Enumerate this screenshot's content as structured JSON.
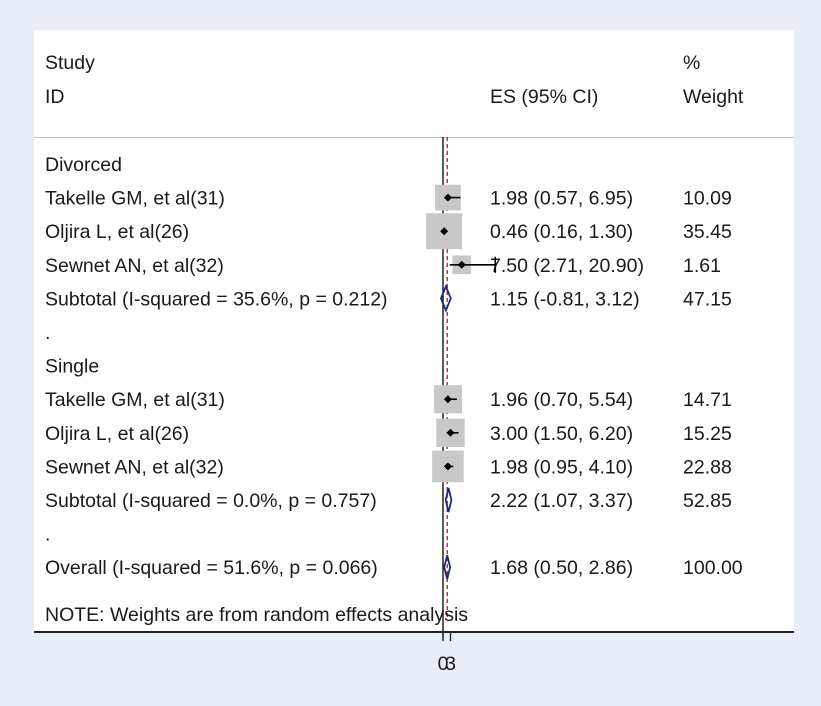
{
  "chart_data": {
    "type": "forest",
    "headers": {
      "study_line1": "Study",
      "study_line2": "ID",
      "es": "ES (95% CI)",
      "weight_line1": "%",
      "weight_line2": "Weight"
    },
    "rows": [
      {
        "kind": "group",
        "label": "Divorced"
      },
      {
        "kind": "study",
        "label": "Takelle GM, et al(31)",
        "es": 1.98,
        "lo": 0.57,
        "hi": 6.95,
        "ci_text": "1.98 (0.57, 6.95)",
        "weight": "10.09"
      },
      {
        "kind": "study",
        "label": "Oljira L, et al(26)",
        "es": 0.46,
        "lo": 0.16,
        "hi": 1.3,
        "ci_text": "0.46 (0.16, 1.30)",
        "weight": "35.45"
      },
      {
        "kind": "study",
        "label": "Sewnet AN, et al(32)",
        "es": 7.5,
        "lo": 2.71,
        "hi": 20.9,
        "ci_text": "7.50 (2.71, 20.90)",
        "weight": "1.61"
      },
      {
        "kind": "subtotal",
        "label": "Subtotal  (I-squared = 35.6%, p = 0.212)",
        "es": 1.15,
        "lo": -0.81,
        "hi": 3.12,
        "ci_text": "1.15 (-0.81, 3.12)",
        "weight": "47.15"
      },
      {
        "kind": "spacer",
        "label": "."
      },
      {
        "kind": "group",
        "label": "Single"
      },
      {
        "kind": "study",
        "label": "Takelle GM, et al(31)",
        "es": 1.96,
        "lo": 0.7,
        "hi": 5.54,
        "ci_text": "1.96 (0.70, 5.54)",
        "weight": "14.71"
      },
      {
        "kind": "study",
        "label": "Oljira L, et al(26)",
        "es": 3.0,
        "lo": 1.5,
        "hi": 6.2,
        "ci_text": "3.00 (1.50, 6.20)",
        "weight": "15.25"
      },
      {
        "kind": "study",
        "label": "Sewnet AN, et al(32)",
        "es": 1.98,
        "lo": 0.95,
        "hi": 4.1,
        "ci_text": "1.98 (0.95, 4.10)",
        "weight": "22.88"
      },
      {
        "kind": "subtotal",
        "label": "Subtotal  (I-squared = 0.0%, p = 0.757)",
        "es": 2.22,
        "lo": 1.07,
        "hi": 3.37,
        "ci_text": "2.22 (1.07, 3.37)",
        "weight": "52.85"
      },
      {
        "kind": "spacer",
        "label": "."
      },
      {
        "kind": "overall",
        "label": "Overall  (I-squared = 51.6%, p = 0.066)",
        "es": 1.68,
        "lo": 0.5,
        "hi": 2.86,
        "ci_text": "1.68 (0.50, 2.86)",
        "weight": "100.00"
      }
    ],
    "note": "NOTE: Weights are from random effects analysis",
    "x_ticks": [
      "0",
      "3"
    ],
    "reference_line": 0,
    "colors": {
      "marker_box": "#c8c8c8",
      "point": "#000000",
      "diamond": "#1f2a7a",
      "effect_line": "#8b1a1a",
      "null_line": "#000000"
    }
  }
}
